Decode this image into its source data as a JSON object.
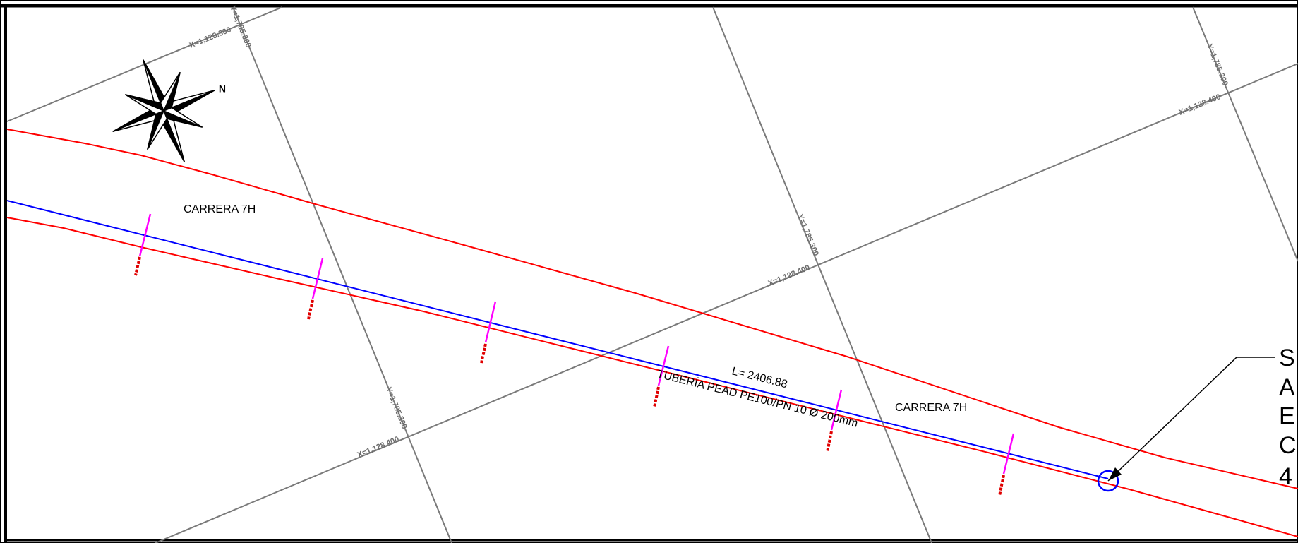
{
  "drawing": {
    "street_label_1": "CARRERA 7H",
    "street_label_2": "CARRERA 7H",
    "pipe_length_label": "L= 2406.88",
    "pipe_description": "TUBERÍA PEAD PE100/PN 10 Ø 200mm",
    "north_label": "N",
    "section_tag_letters": [
      "S",
      "A",
      "E",
      "C",
      "4"
    ],
    "grid_labels": {
      "x_top_left": "X=1,128.300",
      "y_top_left": "Y=1,785.300",
      "y_top_right": "Y=1,785.300",
      "x_top_right": "X=1,128.400",
      "y_middle": "Y=1,785.300",
      "x_middle": "X=1,128.400",
      "y_lower": "Y=1,785.300",
      "x_lower": "X=1,128.400"
    }
  },
  "colors": {
    "grid_line": "#7a7a7a",
    "street_edge": "#ff0000",
    "pipe": "#0000ff",
    "marker": "#ff00ff",
    "marker_base": "#e00000",
    "frame": "#000000"
  },
  "icons": {
    "north_arrow": "compass-rose-icon",
    "node": "circle-node-icon"
  }
}
